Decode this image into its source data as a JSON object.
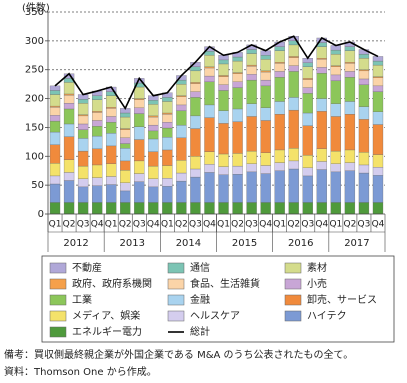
{
  "chart_data": {
    "type": "stacked-bar",
    "y_unit_label": "(件数)",
    "categories": [
      "Q1",
      "Q2",
      "Q3",
      "Q4",
      "Q1",
      "Q2",
      "Q3",
      "Q4",
      "Q1",
      "Q2",
      "Q3",
      "Q4",
      "Q1",
      "Q2",
      "Q3",
      "Q4",
      "Q1",
      "Q2",
      "Q3",
      "Q4",
      "Q1",
      "Q2",
      "Q3",
      "Q4"
    ],
    "years": [
      "2012",
      "2013",
      "2014",
      "2015",
      "2016",
      "2017"
    ],
    "ylim": [
      0,
      350
    ],
    "yticks": [
      0,
      50,
      100,
      150,
      200,
      250,
      300,
      350
    ],
    "grid": true,
    "series": [
      {
        "name": "不動産",
        "color": "#b0a8d8",
        "values": [
          8,
          8,
          8,
          8,
          8,
          8,
          8,
          8,
          8,
          8,
          8,
          8,
          8,
          8,
          8,
          8,
          8,
          8,
          8,
          8,
          8,
          8,
          8,
          8
        ]
      },
      {
        "name": "通信",
        "color": "#7cc4b4",
        "values": [
          7,
          7,
          7,
          7,
          7,
          7,
          7,
          7,
          7,
          7,
          7,
          7,
          7,
          7,
          7,
          7,
          7,
          7,
          7,
          7,
          7,
          7,
          7,
          7
        ]
      },
      {
        "name": "素材",
        "color": "#d4dc8c",
        "values": [
          20,
          20,
          20,
          20,
          20,
          20,
          20,
          20,
          20,
          20,
          20,
          20,
          20,
          20,
          20,
          20,
          20,
          20,
          20,
          20,
          20,
          20,
          20,
          20
        ]
      },
      {
        "name": "政府、政府系機関",
        "color": "#f5a04a",
        "values": [
          2,
          2,
          2,
          2,
          2,
          2,
          2,
          2,
          2,
          2,
          2,
          2,
          2,
          2,
          2,
          2,
          2,
          2,
          2,
          2,
          2,
          2,
          2,
          2
        ]
      },
      {
        "name": "食品、生活雑貨",
        "color": "#fbd4a8",
        "values": [
          14,
          14,
          14,
          14,
          14,
          14,
          14,
          14,
          14,
          14,
          14,
          14,
          14,
          14,
          14,
          14,
          14,
          14,
          14,
          14,
          14,
          14,
          14,
          14
        ]
      },
      {
        "name": "小売",
        "color": "#c8a6d6",
        "values": [
          10,
          10,
          10,
          10,
          10,
          10,
          10,
          10,
          10,
          10,
          10,
          10,
          10,
          10,
          10,
          10,
          10,
          10,
          10,
          10,
          10,
          10,
          10,
          10
        ]
      },
      {
        "name": "工業",
        "color": "#8cc65a",
        "values": [
          19,
          26,
          15,
          17,
          19,
          8,
          23,
          14,
          16,
          25,
          32,
          40,
          35,
          37,
          41,
          38,
          42,
          45,
          34,
          44,
          40,
          42,
          38,
          35
        ]
      },
      {
        "name": "金融",
        "color": "#a9d3ef",
        "values": [
          22,
          22,
          22,
          22,
          22,
          22,
          22,
          22,
          22,
          22,
          22,
          22,
          22,
          22,
          22,
          22,
          22,
          22,
          22,
          22,
          22,
          22,
          22,
          22
        ]
      },
      {
        "name": "卸売、サービス",
        "color": "#f08a3c",
        "values": [
          32,
          40,
          26,
          28,
          31,
          16,
          37,
          25,
          27,
          39,
          48,
          59,
          53,
          55,
          60,
          56,
          62,
          66,
          51,
          65,
          60,
          62,
          57,
          52
        ]
      },
      {
        "name": "メディア、娯楽",
        "color": "#f4e26a",
        "values": [
          22,
          22,
          22,
          22,
          22,
          22,
          22,
          22,
          22,
          22,
          22,
          22,
          22,
          22,
          22,
          22,
          22,
          22,
          22,
          22,
          22,
          22,
          22,
          22
        ]
      },
      {
        "name": "ヘルスケア",
        "color": "#d4cdee",
        "values": [
          14,
          14,
          14,
          14,
          14,
          14,
          14,
          14,
          14,
          14,
          14,
          14,
          14,
          14,
          14,
          14,
          14,
          14,
          14,
          14,
          14,
          14,
          14,
          14
        ]
      },
      {
        "name": "ハイテク",
        "color": "#7c9ad4",
        "values": [
          32,
          38,
          27,
          29,
          31,
          20,
          36,
          27,
          28,
          37,
          44,
          52,
          48,
          49,
          53,
          50,
          55,
          58,
          46,
          57,
          53,
          55,
          51,
          47
        ]
      },
      {
        "name": "エネルギー電力",
        "color": "#4f9a3c",
        "values": [
          20,
          20,
          20,
          20,
          20,
          20,
          20,
          20,
          20,
          20,
          20,
          20,
          20,
          20,
          20,
          20,
          20,
          20,
          20,
          20,
          20,
          20,
          20,
          20
        ]
      }
    ],
    "total": {
      "name": "総計",
      "color": "#000000",
      "values": [
        222,
        243,
        207,
        213,
        220,
        183,
        235,
        205,
        210,
        240,
        263,
        290,
        275,
        280,
        293,
        283,
        298,
        308,
        270,
        305,
        292,
        298,
        285,
        273
      ]
    },
    "notes": [
      "備考：買収側最終親企業が外国企業である M&A のうち公表されたもの全て。",
      "資料：Thomson One から作成。"
    ]
  }
}
